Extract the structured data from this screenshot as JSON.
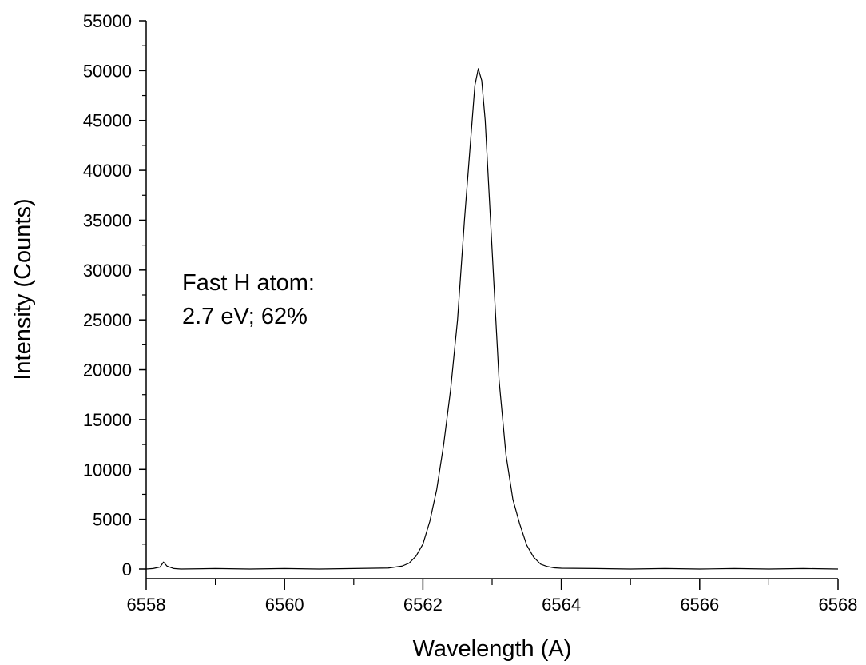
{
  "chart_data": {
    "type": "line",
    "title": "",
    "xlabel": "Wavelength (A)",
    "ylabel": "Intensity (Counts)",
    "xlim": [
      6558,
      6568
    ],
    "ylim": [
      0,
      55000
    ],
    "x_ticks": [
      6558,
      6560,
      6562,
      6564,
      6566,
      6568
    ],
    "x_tick_labels": [
      "6558",
      "6560",
      "6562",
      "6564",
      "6566",
      "6568"
    ],
    "y_ticks": [
      0,
      5000,
      10000,
      15000,
      20000,
      25000,
      30000,
      35000,
      40000,
      45000,
      50000,
      55000
    ],
    "y_tick_labels": [
      "0",
      "5000",
      "10000",
      "15000",
      "20000",
      "25000",
      "30000",
      "35000",
      "40000",
      "45000",
      "50000",
      "55000"
    ],
    "grid": false,
    "legend": "none",
    "annotations": [
      "Fast H atom:",
      "2.7 eV; 62%"
    ],
    "series": [
      {
        "color": "#000000",
        "x": [
          6558.0,
          6558.1,
          6558.2,
          6558.25,
          6558.3,
          6558.4,
          6558.5,
          6559.0,
          6559.5,
          6560.0,
          6560.5,
          6561.0,
          6561.5,
          6561.7,
          6561.8,
          6561.9,
          6562.0,
          6562.1,
          6562.2,
          6562.3,
          6562.4,
          6562.5,
          6562.6,
          6562.7,
          6562.75,
          6562.8,
          6562.85,
          6562.9,
          6563.0,
          6563.1,
          6563.2,
          6563.3,
          6563.4,
          6563.5,
          6563.6,
          6563.7,
          6563.8,
          6563.9,
          6564.0,
          6564.5,
          6565.0,
          6565.5,
          6566.0,
          6566.5,
          6567.0,
          6567.5,
          6568.0
        ],
        "y": [
          0,
          50,
          200,
          700,
          300,
          50,
          0,
          50,
          0,
          50,
          0,
          50,
          100,
          300,
          600,
          1300,
          2500,
          4800,
          8000,
          12500,
          18000,
          25000,
          35000,
          44000,
          48500,
          50200,
          49000,
          45000,
          32000,
          19000,
          11500,
          7000,
          4500,
          2400,
          1200,
          500,
          250,
          120,
          80,
          50,
          0,
          50,
          0,
          50,
          0,
          50,
          0
        ]
      }
    ]
  }
}
